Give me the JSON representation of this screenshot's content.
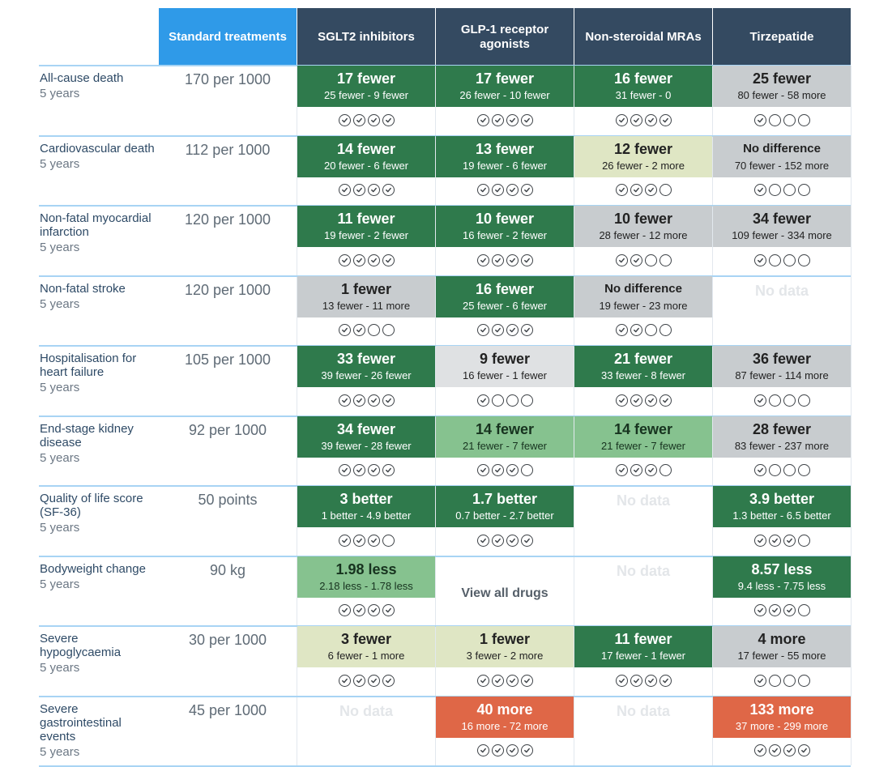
{
  "headers": [
    "Standard treatments",
    "SGLT2 inhibitors",
    "GLP-1 receptor agonists",
    "Non-steroidal MRAs",
    "Tirzepatide"
  ],
  "rows": [
    {
      "label": "All-cause death",
      "period": "5 years",
      "standard": "170 per 1000",
      "cells": [
        {
          "type": "effect",
          "main": "17 fewer",
          "range": "25 fewer - 9 fewer",
          "color": "dark",
          "certainty": 4
        },
        {
          "type": "effect",
          "main": "17 fewer",
          "range": "26 fewer - 10 fewer",
          "color": "dark",
          "certainty": 4
        },
        {
          "type": "effect",
          "main": "16 fewer",
          "range": "31 fewer - 0",
          "color": "dark",
          "certainty": 4
        },
        {
          "type": "effect",
          "main": "25 fewer",
          "range": "80 fewer - 58 more",
          "color": "grey",
          "certainty": 1
        }
      ]
    },
    {
      "label": "Cardiovascular death",
      "period": "5 years",
      "standard": "112 per 1000",
      "cells": [
        {
          "type": "effect",
          "main": "14 fewer",
          "range": "20 fewer - 6 fewer",
          "color": "dark",
          "certainty": 4
        },
        {
          "type": "effect",
          "main": "13 fewer",
          "range": "19 fewer - 6 fewer",
          "color": "dark",
          "certainty": 4
        },
        {
          "type": "effect",
          "main": "12 fewer",
          "range": "26 fewer - 2 more",
          "color": "pale",
          "certainty": 3
        },
        {
          "type": "effect",
          "main": "No difference",
          "range": "70 fewer - 152 more",
          "color": "grey",
          "certainty": 1
        }
      ]
    },
    {
      "label": "Non-fatal myocardial infarction",
      "period": "5 years",
      "standard": "120 per 1000",
      "cells": [
        {
          "type": "effect",
          "main": "11 fewer",
          "range": "19 fewer - 2 fewer",
          "color": "dark",
          "certainty": 4
        },
        {
          "type": "effect",
          "main": "10 fewer",
          "range": "16 fewer - 2 fewer",
          "color": "dark",
          "certainty": 4
        },
        {
          "type": "effect",
          "main": "10 fewer",
          "range": "28 fewer - 12 more",
          "color": "grey",
          "certainty": 2
        },
        {
          "type": "effect",
          "main": "34 fewer",
          "range": "109 fewer - 334 more",
          "color": "grey",
          "certainty": 1
        }
      ]
    },
    {
      "label": "Non-fatal stroke",
      "period": "5 years",
      "standard": "120 per 1000",
      "cells": [
        {
          "type": "effect",
          "main": "1 fewer",
          "range": "13 fewer - 11 more",
          "color": "grey",
          "certainty": 2
        },
        {
          "type": "effect",
          "main": "16 fewer",
          "range": "25 fewer - 6 fewer",
          "color": "dark",
          "certainty": 4
        },
        {
          "type": "effect",
          "main": "No difference",
          "range": "19 fewer - 23 more",
          "color": "grey",
          "certainty": 2
        },
        {
          "type": "nodata",
          "text": "No data"
        }
      ]
    },
    {
      "label": "Hospitalisation for heart failure",
      "period": "5 years",
      "standard": "105 per 1000",
      "cells": [
        {
          "type": "effect",
          "main": "33 fewer",
          "range": "39 fewer - 26 fewer",
          "color": "dark",
          "certainty": 4
        },
        {
          "type": "effect",
          "main": "9 fewer",
          "range": "16 fewer - 1 fewer",
          "color": "lgrey",
          "certainty": 1
        },
        {
          "type": "effect",
          "main": "21 fewer",
          "range": "33 fewer - 8 fewer",
          "color": "dark",
          "certainty": 4
        },
        {
          "type": "effect",
          "main": "36 fewer",
          "range": "87 fewer - 114 more",
          "color": "grey",
          "certainty": 1
        }
      ]
    },
    {
      "label": "End-stage kidney disease",
      "period": "5 years",
      "standard": "92 per 1000",
      "cells": [
        {
          "type": "effect",
          "main": "34 fewer",
          "range": "39 fewer - 28 fewer",
          "color": "dark",
          "certainty": 4
        },
        {
          "type": "effect",
          "main": "14 fewer",
          "range": "21 fewer - 7 fewer",
          "color": "mid",
          "certainty": 3
        },
        {
          "type": "effect",
          "main": "14 fewer",
          "range": "21 fewer - 7 fewer",
          "color": "mid",
          "certainty": 3
        },
        {
          "type": "effect",
          "main": "28 fewer",
          "range": "83 fewer - 237 more",
          "color": "grey",
          "certainty": 1
        }
      ]
    },
    {
      "label": "Quality of life score (SF-36)",
      "period": "5 years",
      "standard": "50 points",
      "cells": [
        {
          "type": "effect",
          "main": "3 better",
          "range": "1 better - 4.9 better",
          "color": "dark",
          "certainty": 3
        },
        {
          "type": "effect",
          "main": "1.7 better",
          "range": "0.7 better - 2.7 better",
          "color": "dark",
          "certainty": 4
        },
        {
          "type": "nodata",
          "text": "No data"
        },
        {
          "type": "effect",
          "main": "3.9 better",
          "range": "1.3 better - 6.5 better",
          "color": "dark",
          "certainty": 3
        }
      ]
    },
    {
      "label": "Bodyweight change",
      "period": "5 years",
      "standard": "90 kg",
      "cells": [
        {
          "type": "effect",
          "main": "1.98 less",
          "range": "2.18 less - 1.78 less",
          "color": "mid",
          "certainty": 4
        },
        {
          "type": "viewall",
          "text": "View all drugs"
        },
        {
          "type": "nodata",
          "text": "No data"
        },
        {
          "type": "effect",
          "main": "8.57 less",
          "range": "9.4 less - 7.75 less",
          "color": "dark",
          "certainty": 3
        }
      ]
    },
    {
      "label": "Severe hypoglycaemia",
      "period": "5 years",
      "standard": "30 per 1000",
      "cells": [
        {
          "type": "effect",
          "main": "3 fewer",
          "range": "6 fewer - 1 more",
          "color": "pale",
          "certainty": 4
        },
        {
          "type": "effect",
          "main": "1 fewer",
          "range": "3 fewer - 2 more",
          "color": "pale",
          "certainty": 4
        },
        {
          "type": "effect",
          "main": "11 fewer",
          "range": "17 fewer - 1 fewer",
          "color": "dark",
          "certainty": 4
        },
        {
          "type": "effect",
          "main": "4 more",
          "range": "17 fewer - 55 more",
          "color": "grey",
          "certainty": 1
        }
      ]
    },
    {
      "label": "Severe gastrointestinal events",
      "period": "5 years",
      "standard": "45 per 1000",
      "cells": [
        {
          "type": "nodata",
          "text": "No data"
        },
        {
          "type": "effect",
          "main": "40 more",
          "range": "16 more - 72 more",
          "color": "red",
          "certainty": 4
        },
        {
          "type": "nodata",
          "text": "No data"
        },
        {
          "type": "effect",
          "main": "133 more",
          "range": "37 more - 299 more",
          "color": "red",
          "certainty": 4
        }
      ]
    }
  ]
}
